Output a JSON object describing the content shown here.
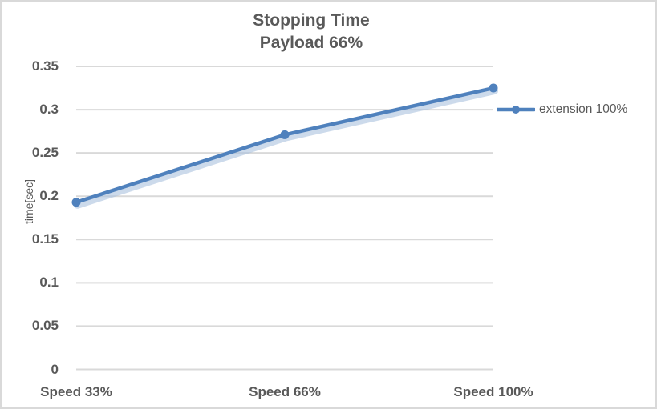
{
  "chart_data": {
    "type": "line",
    "title": "Stopping Time",
    "subtitle": "Payload 66%",
    "ylabel": "time[sec]",
    "categories": [
      "Speed 33%",
      "Speed 66%",
      "Speed 100%"
    ],
    "series": [
      {
        "name": "extension 100%",
        "values": [
          0.193,
          0.271,
          0.325
        ]
      }
    ],
    "ylim": [
      0,
      0.35
    ],
    "y_tick_step": 0.05,
    "y_tick_labels": [
      "0",
      "0.05",
      "0.1",
      "0.15",
      "0.2",
      "0.25",
      "0.3",
      "0.35"
    ],
    "grid": true,
    "legend_position": "right",
    "colors": {
      "line": "#4f81bd",
      "line_glow": "#aac2de",
      "grid": "#d9d9d9",
      "text": "#595959",
      "border": "#d9d9d9",
      "background": "#ffffff"
    }
  }
}
